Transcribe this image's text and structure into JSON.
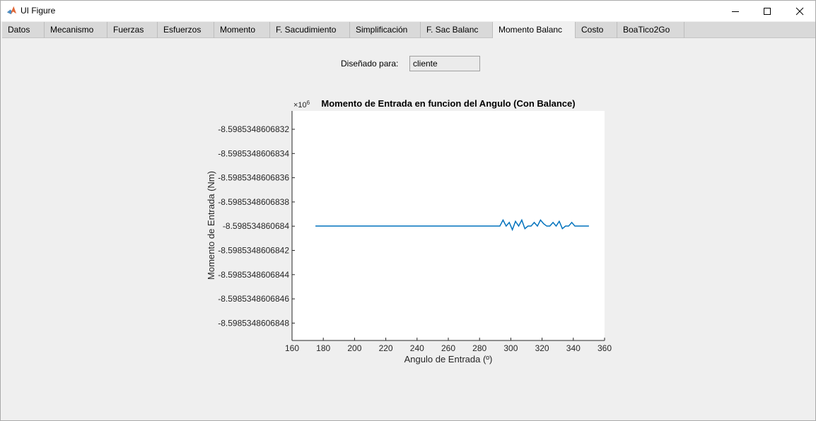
{
  "window": {
    "title": "UI Figure",
    "icon": "matlab-logo-icon",
    "controls": [
      "minimize-icon",
      "maximize-icon",
      "close-icon"
    ]
  },
  "tabs": [
    {
      "label": "Datos",
      "active": false
    },
    {
      "label": "Mecanismo",
      "active": false
    },
    {
      "label": "Fuerzas",
      "active": false
    },
    {
      "label": "Esfuerzos",
      "active": false
    },
    {
      "label": "Momento",
      "active": false
    },
    {
      "label": "F. Sacudimiento",
      "active": false
    },
    {
      "label": "Simplificación",
      "active": false
    },
    {
      "label": "F. Sac Balanc",
      "active": false
    },
    {
      "label": "Momento Balanc",
      "active": true
    },
    {
      "label": "Costo",
      "active": false
    },
    {
      "label": "BoaTico2Go",
      "active": false
    }
  ],
  "form": {
    "designed_for_label": "Diseñado para:",
    "designed_for_value": "cliente"
  },
  "chart_data": {
    "type": "line",
    "title": "Momento de Entrada en funcion del Angulo (Con Balance)",
    "xlabel": "Angulo de Entrada (º)",
    "ylabel": "Momento de Entrada (Nm)",
    "exponent_label": "×10",
    "exponent_power": "6",
    "xlim": [
      160,
      360
    ],
    "x_ticks": [
      "160",
      "180",
      "200",
      "220",
      "240",
      "260",
      "280",
      "300",
      "320",
      "340",
      "360"
    ],
    "y_ticks": [
      "-8.5985348606832",
      "-8.5985348606834",
      "-8.5985348606836",
      "-8.5985348606838",
      "-8.598534860684",
      "-8.5985348606842",
      "-8.5985348606844",
      "-8.5985348606846",
      "-8.5985348606848"
    ],
    "grid": false,
    "series_color": "#0072bd",
    "series": [
      {
        "x": [
          175,
          200,
          225,
          250,
          275,
          293,
          295,
          297,
          299,
          301,
          303,
          305,
          307,
          309,
          311,
          313,
          315,
          317,
          319,
          321,
          323,
          325,
          327,
          329,
          331,
          333,
          335,
          337,
          339,
          341,
          343,
          345,
          350
        ],
        "y": [
          -8.598534860684,
          -8.598534860684,
          -8.598534860684,
          -8.598534860684,
          -8.598534860684,
          -8.598534860684,
          -8.59853486068395,
          -8.598534860684,
          -8.59853486068397,
          -8.59853486068403,
          -8.59853486068396,
          -8.598534860684,
          -8.59853486068395,
          -8.59853486068402,
          -8.598534860684,
          -8.598534860684,
          -8.59853486068397,
          -8.598534860684,
          -8.59853486068395,
          -8.59853486068398,
          -8.598534860684,
          -8.598534860684,
          -8.59853486068397,
          -8.598534860684,
          -8.59853486068396,
          -8.59853486068402,
          -8.598534860684,
          -8.598534860684,
          -8.59853486068397,
          -8.598534860684,
          -8.598534860684,
          -8.598534860684,
          -8.598534860684
        ]
      }
    ]
  }
}
